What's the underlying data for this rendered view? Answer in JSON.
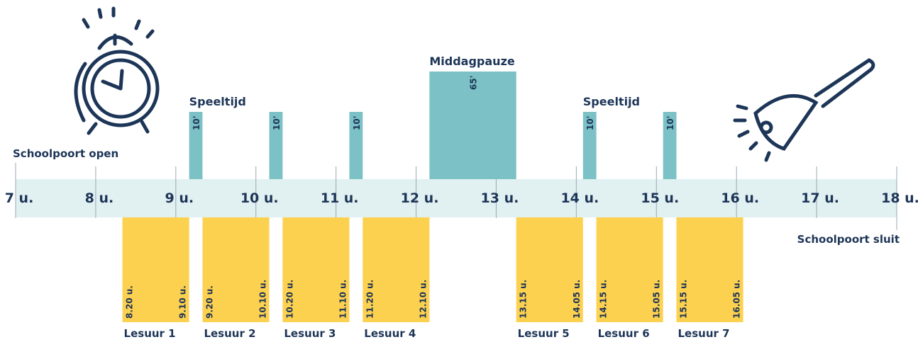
{
  "axis": {
    "ticks": [
      {
        "value": 420,
        "label": "7 u."
      },
      {
        "value": 480,
        "label": "8 u."
      },
      {
        "value": 540,
        "label": "9 u."
      },
      {
        "value": 600,
        "label": "10 u."
      },
      {
        "value": 660,
        "label": "11 u."
      },
      {
        "value": 720,
        "label": "12 u."
      },
      {
        "value": 780,
        "label": "13 u."
      },
      {
        "value": 840,
        "label": "14 u."
      },
      {
        "value": 900,
        "label": "15 u."
      },
      {
        "value": 960,
        "label": "16 u."
      },
      {
        "value": 1020,
        "label": "17 u."
      },
      {
        "value": 1080,
        "label": "18 u."
      }
    ]
  },
  "open": {
    "label": "Schoolpoort open",
    "time": 420
  },
  "close": {
    "label": "Schoolpoort sluit",
    "time": 1080
  },
  "lessons": [
    {
      "name": "Lesuur 1",
      "start": {
        "value": 500,
        "label": "8.20 u."
      },
      "end": {
        "value": 550,
        "label": "9.10 u."
      }
    },
    {
      "name": "Lesuur 2",
      "start": {
        "value": 560,
        "label": "9.20 u."
      },
      "end": {
        "value": 610,
        "label": "10.10 u."
      }
    },
    {
      "name": "Lesuur 3",
      "start": {
        "value": 620,
        "label": "10.20 u."
      },
      "end": {
        "value": 670,
        "label": "11.10 u."
      }
    },
    {
      "name": "Lesuur 4",
      "start": {
        "value": 680,
        "label": "11.20 u."
      },
      "end": {
        "value": 730,
        "label": "12.10 u."
      }
    },
    {
      "name": "Lesuur 5",
      "start": {
        "value": 795,
        "label": "13.15 u."
      },
      "end": {
        "value": 845,
        "label": "14.05 u."
      }
    },
    {
      "name": "Lesuur 6",
      "start": {
        "value": 855,
        "label": "14.15 u."
      },
      "end": {
        "value": 905,
        "label": "15.05 u."
      }
    },
    {
      "name": "Lesuur 7",
      "start": {
        "value": 915,
        "label": "15.15 u."
      },
      "end": {
        "value": 965,
        "label": "16.05 u."
      }
    }
  ],
  "breaks": [
    {
      "title": "Speeltijd",
      "start": 550,
      "duration": {
        "value": 10,
        "label": "10'"
      }
    },
    {
      "start": 610,
      "duration": {
        "value": 10,
        "label": "10'"
      }
    },
    {
      "start": 670,
      "duration": {
        "value": 10,
        "label": "10'"
      }
    },
    {
      "title": "Middagpauze",
      "start": 730,
      "duration": {
        "value": 65,
        "label": "65'"
      }
    },
    {
      "title": "Speeltijd",
      "start": 845,
      "duration": {
        "value": 10,
        "label": "10'"
      }
    },
    {
      "start": 905,
      "duration": {
        "value": 10,
        "label": "10'"
      }
    }
  ]
}
